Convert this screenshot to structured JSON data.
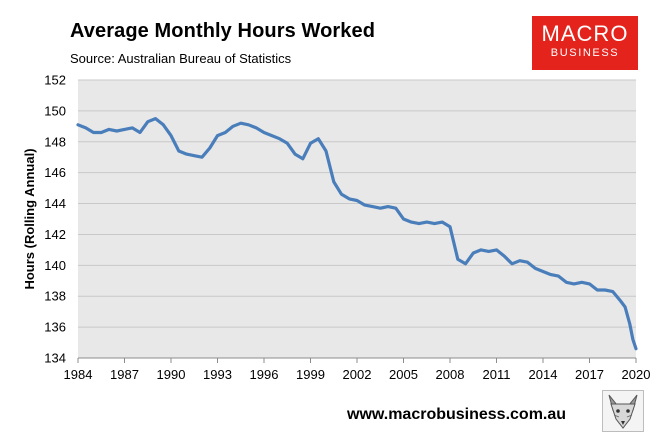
{
  "header": {
    "title": "Average Monthly Hours Worked",
    "subtitle": "Source: Australian Bureau of Statistics"
  },
  "logo": {
    "line1": "MACRO",
    "line2": "BUSINESS",
    "color": "#e4231c"
  },
  "footer": {
    "url": "www.macrobusiness.com.au",
    "mascot_icon": "fox-head-icon"
  },
  "colors": {
    "line": "#4a7ebb",
    "plot_background": "#e8e8e8",
    "grid": "#c8c8c8"
  },
  "chart_data": {
    "type": "line",
    "title": "Average Monthly Hours Worked",
    "xlabel": "",
    "ylabel": "Hours (Rolling Annual)",
    "xlim": [
      1984,
      2020
    ],
    "ylim": [
      134,
      152
    ],
    "x_ticks": [
      1984,
      1987,
      1990,
      1993,
      1996,
      1999,
      2002,
      2005,
      2008,
      2011,
      2014,
      2017,
      2020
    ],
    "y_ticks": [
      134,
      136,
      138,
      140,
      142,
      144,
      146,
      148,
      150,
      152
    ],
    "grid": "horizontal",
    "legend": "none",
    "series": [
      {
        "x": [
          1984.0,
          1984.5,
          1985.0,
          1985.5,
          1986.0,
          1986.5,
          1987.0,
          1987.5,
          1988.0,
          1988.5,
          1989.0,
          1989.5,
          1990.0,
          1990.5,
          1991.0,
          1991.5,
          1992.0,
          1992.5,
          1993.0,
          1993.5,
          1994.0,
          1994.5,
          1995.0,
          1995.5,
          1996.0,
          1996.5,
          1997.0,
          1997.5,
          1998.0,
          1998.5,
          1999.0,
          1999.5,
          2000.0,
          2000.5,
          2001.0,
          2001.5,
          2002.0,
          2002.5,
          2003.0,
          2003.5,
          2004.0,
          2004.5,
          2005.0,
          2005.5,
          2006.0,
          2006.5,
          2007.0,
          2007.5,
          2008.0,
          2008.5,
          2009.0,
          2009.5,
          2010.0,
          2010.5,
          2011.0,
          2011.5,
          2012.0,
          2012.5,
          2013.0,
          2013.5,
          2014.0,
          2014.5,
          2015.0,
          2015.5,
          2016.0,
          2016.5,
          2017.0,
          2017.5,
          2018.0,
          2018.5,
          2019.0,
          2019.3,
          2019.6,
          2019.8,
          2020.0
        ],
        "values": [
          149.1,
          148.9,
          148.6,
          148.6,
          148.8,
          148.7,
          148.8,
          148.9,
          148.6,
          149.3,
          149.5,
          149.1,
          148.4,
          147.4,
          147.2,
          147.1,
          147.0,
          147.6,
          148.4,
          148.6,
          149.0,
          149.2,
          149.1,
          148.9,
          148.6,
          148.4,
          148.2,
          147.9,
          147.2,
          146.9,
          147.9,
          148.2,
          147.4,
          145.4,
          144.6,
          144.3,
          144.2,
          143.9,
          143.8,
          143.7,
          143.8,
          143.7,
          143.0,
          142.8,
          142.7,
          142.8,
          142.7,
          142.8,
          142.5,
          140.4,
          140.1,
          140.8,
          141.0,
          140.9,
          141.0,
          140.6,
          140.1,
          140.3,
          140.2,
          139.8,
          139.6,
          139.4,
          139.3,
          138.9,
          138.8,
          138.9,
          138.8,
          138.4,
          138.4,
          138.3,
          137.7,
          137.3,
          136.2,
          135.2,
          134.6
        ]
      }
    ]
  }
}
